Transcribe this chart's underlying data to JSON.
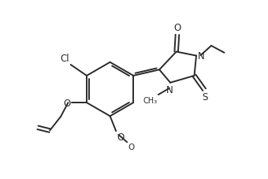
{
  "background": "#ffffff",
  "line_color": "#2a2a2a",
  "line_width": 1.4,
  "font_size": 8.5,
  "xlim": [
    -1.5,
    9.5
  ],
  "ylim": [
    -2.5,
    6.5
  ]
}
